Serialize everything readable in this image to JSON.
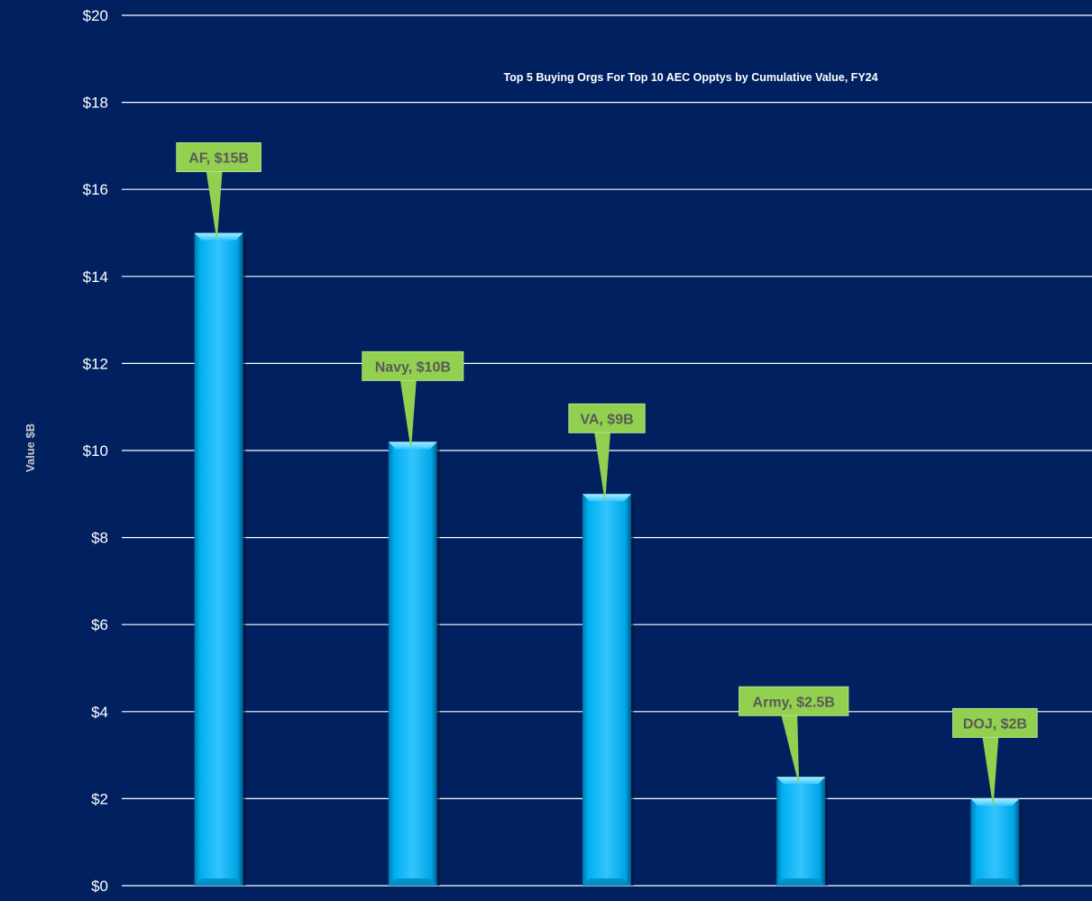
{
  "chart_data": {
    "type": "bar",
    "title": "Top 5 Buying Orgs For Top 10 AEC Opptys by Cumulative Value, FY24",
    "ylabel": "Value $B",
    "xlabel": "",
    "ylim": [
      0,
      20
    ],
    "yticks": [
      0,
      2,
      4,
      6,
      8,
      10,
      12,
      14,
      16,
      18,
      20
    ],
    "ytick_labels": [
      "$0",
      "$2",
      "$4",
      "$6",
      "$8",
      "$10",
      "$12",
      "$14",
      "$16",
      "$18",
      "$20"
    ],
    "grid": true,
    "legend": "none",
    "categories": [
      "AF",
      "Navy",
      "VA",
      "Army",
      "DOJ"
    ],
    "values": [
      15,
      10.2,
      9,
      2.5,
      2
    ],
    "data_labels": [
      "AF, $15B",
      "Navy, $10B",
      "VA, $9B",
      "Army, $2.5B",
      "DOJ, $2B"
    ]
  },
  "colors": {
    "background": "#002060",
    "gridline": "#ffffff",
    "bar": "#00b0f0",
    "bar_highlight": "#7fe0ff",
    "bar_shadow": "#0070a8",
    "callout_fill": "#92d050",
    "callout_text": "#595959",
    "tick_text": "#ffffff",
    "title_text": "#ffffff",
    "axis_title_text": "#c8c8c8"
  }
}
